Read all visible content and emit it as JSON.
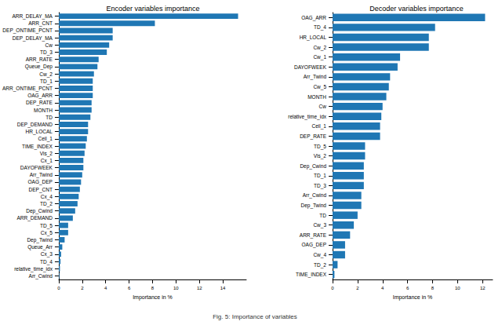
{
  "caption": "Fig. 5: Importance of variables",
  "chart_data": [
    {
      "type": "bar",
      "title": "Encoder variables importance",
      "orientation": "horizontal",
      "x_label": "Importance in %",
      "color": "#1f77b4",
      "grid": false,
      "categories": [
        "ARR_DELAY_MA",
        "ARR_CNT",
        "DEP_ONTIME_PCNT",
        "DEP_DELAY_MA",
        "Cw",
        "TD_3",
        "ARR_RATE",
        "Queue_Dep",
        "Cw_2",
        "TD_1",
        "ARR_ONTIME_PCNT",
        "OAG_ARR",
        "DEP_RATE",
        "MONTH",
        "TD",
        "DEP_DEMAND",
        "HR_LOCAL",
        "Ceil_1",
        "TIME_INDEX",
        "Vis_2",
        "Cx_1",
        "DAYOFWEEK",
        "Arr_Twind",
        "OAG_DEP",
        "DEP_CNT",
        "Cx_4",
        "TD_2",
        "Dep_Cwind",
        "ARR_DEMAND",
        "TD_5",
        "Cx_5",
        "Dep_Twind",
        "Queue_Arr",
        "Cx_3",
        "TD_4",
        "relative_time_idx",
        "Arr_Cwind"
      ],
      "values": [
        15.3,
        8.2,
        4.6,
        4.6,
        4.3,
        4.1,
        3.4,
        3.3,
        3.0,
        2.9,
        2.9,
        2.9,
        2.8,
        2.8,
        2.7,
        2.5,
        2.5,
        2.4,
        2.3,
        2.2,
        2.1,
        2.1,
        2.0,
        1.9,
        1.8,
        1.7,
        1.6,
        1.4,
        1.2,
        0.8,
        0.8,
        0.5,
        0.3,
        0.2,
        0.15,
        0.1,
        0.05
      ],
      "xlim": [
        0,
        16
      ],
      "xticks": [
        0,
        2,
        4,
        6,
        8,
        10,
        12,
        14
      ]
    },
    {
      "type": "bar",
      "title": "Decoder variables importance",
      "orientation": "horizontal",
      "x_label": "Importance in %",
      "color": "#1f77b4",
      "grid": false,
      "categories": [
        "OAG_ARR",
        "TD_4",
        "HR_LOCAL",
        "Cw_2",
        "Cw_1",
        "DAYOFWEEK",
        "Arr_Twind",
        "Cw_5",
        "MONTH",
        "Cw",
        "relative_time_idx",
        "Ceil_1",
        "DEP_RATE",
        "TD_5",
        "Vis_2",
        "Dep_Cwind",
        "TD_1",
        "TD_3",
        "Arr_Cwind",
        "Dep_Twind",
        "TD",
        "Cw_3",
        "ARR_RATE",
        "OAG_DEP",
        "Cw_4",
        "TD_2",
        "TIME_INDEX"
      ],
      "values": [
        12.2,
        8.2,
        7.7,
        7.7,
        5.4,
        5.2,
        4.6,
        4.5,
        4.3,
        4.0,
        3.9,
        3.8,
        3.8,
        2.6,
        2.6,
        2.5,
        2.5,
        2.5,
        2.3,
        2.3,
        2.0,
        1.7,
        1.4,
        1.0,
        1.0,
        0.4,
        0.15
      ],
      "xlim": [
        0,
        12.8
      ],
      "xticks": [
        0,
        2,
        4,
        6,
        8,
        10,
        12
      ]
    }
  ]
}
